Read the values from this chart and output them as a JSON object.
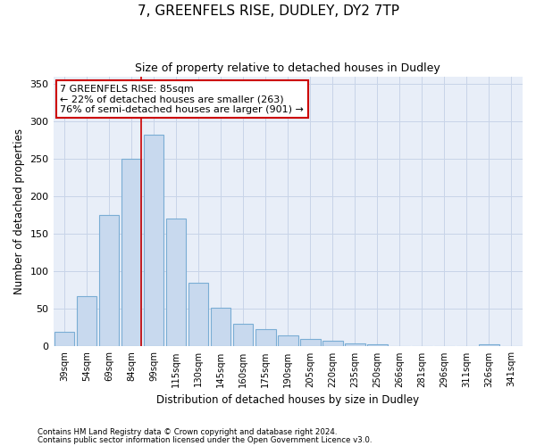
{
  "title1": "7, GREENFELS RISE, DUDLEY, DY2 7TP",
  "title2": "Size of property relative to detached houses in Dudley",
  "xlabel": "Distribution of detached houses by size in Dudley",
  "ylabel": "Number of detached properties",
  "categories": [
    "39sqm",
    "54sqm",
    "69sqm",
    "84sqm",
    "99sqm",
    "115sqm",
    "130sqm",
    "145sqm",
    "160sqm",
    "175sqm",
    "190sqm",
    "205sqm",
    "220sqm",
    "235sqm",
    "250sqm",
    "266sqm",
    "281sqm",
    "296sqm",
    "311sqm",
    "326sqm",
    "341sqm"
  ],
  "values": [
    20,
    67,
    175,
    250,
    282,
    170,
    85,
    52,
    30,
    23,
    15,
    10,
    8,
    4,
    3,
    1,
    0,
    0,
    0,
    3
  ],
  "bar_color": "#c8d9ee",
  "bar_edge_color": "#7aadd4",
  "property_line_index": 3,
  "annotation_line1": "7 GREENFELS RISE: 85sqm",
  "annotation_line2": "← 22% of detached houses are smaller (263)",
  "annotation_line3": "76% of semi-detached houses are larger (901) →",
  "annotation_box_facecolor": "#ffffff",
  "annotation_box_edgecolor": "#cc0000",
  "property_line_color": "#cc0000",
  "ylim": [
    0,
    360
  ],
  "yticks": [
    0,
    50,
    100,
    150,
    200,
    250,
    300,
    350
  ],
  "footnote1": "Contains HM Land Registry data © Crown copyright and database right 2024.",
  "footnote2": "Contains public sector information licensed under the Open Government Licence v3.0.",
  "background_color": "#ffffff",
  "axes_background_color": "#e8eef8",
  "grid_color": "#c8d4e8"
}
